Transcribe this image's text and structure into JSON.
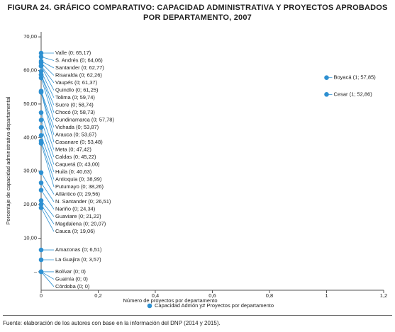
{
  "chart_data": {
    "type": "scatter",
    "title": "FIGURA 24. GRÁFICO COMPARATIVO: CAPACIDAD ADMINISTRATIVA Y PROYECTOS APROBADOS POR DEPARTAMENTO, 2007",
    "xlabel": "Número de proyectos por departamento",
    "ylabel": "Porcentaje de capacidad administrativa departamental",
    "source": "Fuente: elaboración de los autores con base en la información del DNP (2014 y 2015).",
    "xlim": [
      0,
      1.2
    ],
    "xticks": [
      0,
      {
        "value": 0.2,
        "label": "0,2"
      },
      {
        "value": 0.4,
        "label": "0,4"
      },
      {
        "value": 0.6,
        "label": "0,6"
      },
      {
        "value": 0.8,
        "label": "0,8"
      },
      1,
      {
        "value": 1.2,
        "label": "1,2"
      }
    ],
    "ylim": [
      -5.5,
      71.5
    ],
    "yticks": [
      {
        "value": 0,
        "label": "–"
      },
      {
        "value": 10,
        "label": "10,00"
      },
      {
        "value": 20,
        "label": "20,00"
      },
      {
        "value": 30,
        "label": "30,00"
      },
      {
        "value": 40,
        "label": "40,00"
      },
      {
        "value": 50,
        "label": "50,00"
      },
      {
        "value": 60,
        "label": "60,00"
      },
      {
        "value": 70,
        "label": "70,00"
      }
    ],
    "legend": "bottom",
    "series": [
      {
        "name": "Capacidad Admón y# Proyectos por departamento",
        "color": "#2e90d1",
        "x": [
          0,
          0,
          0,
          0,
          0,
          0,
          0,
          0,
          0,
          0,
          0,
          0,
          0,
          0,
          0,
          0,
          0,
          0,
          0,
          0,
          0,
          0,
          0,
          0,
          0,
          0,
          0,
          0,
          0,
          0,
          1,
          1
        ],
        "values": [
          65.17,
          64.06,
          62.77,
          62.26,
          61.37,
          61.25,
          59.74,
          58.74,
          58.73,
          57.78,
          53.87,
          53.67,
          53.48,
          47.42,
          45.22,
          43.0,
          40.63,
          38.99,
          38.26,
          29.56,
          26.51,
          24.34,
          21.22,
          20.07,
          19.06,
          6.51,
          3.57,
          0,
          0,
          0,
          57.85,
          52.86
        ],
        "value_labels": [
          "Valle (0; 65,17)",
          "S. Andrés (0; 64,06)",
          "Santander (0; 62,77)",
          "Risaralda (0; 62,26)",
          "Vaupés (0; 61,37)",
          "Quindío (0; 61,25)",
          "Tolima (0; 59,74)",
          "Sucre (0; 58,74)",
          "Chocó (0; 58,73)",
          "Cundinamarca (0; 57,78)",
          "Vichada (0; 53,87)",
          "Arauca (0; 53,67)",
          "Casanare (0; 53,48)",
          "Meta (0; 47,42)",
          "Caldas (0; 45,22)",
          "Caquetá (0; 43,00)",
          "Huila (0; 40,63)",
          "Antioquia (0; 38,99)",
          "Putumayo (0; 38,26)",
          "Atlántico (0; 29,56)",
          "N. Santander (0; 26,51)",
          "Nariño (0; 24,34)",
          "Guaviare (0; 21,22)",
          "Magdalena (0; 20,07)",
          "Cauca (0; 19,06)",
          "Amazonas (0; 6,51)",
          "La Guajira (0; 3,57)",
          "Bolívar (0; 0)",
          "Guainía (0; 0)",
          "Córdoba (0; 0)",
          "Boyacá (1; 57,85)",
          "Cesar (1; 52,86)"
        ]
      }
    ]
  }
}
